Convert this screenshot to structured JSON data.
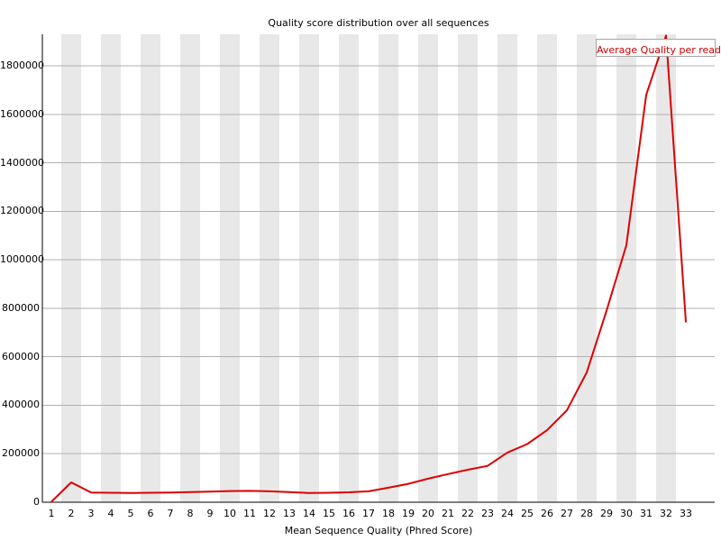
{
  "window": {
    "background": "#ffffff"
  },
  "chart_data": {
    "type": "line",
    "title": "Quality score distribution over all sequences",
    "xlabel": "Mean Sequence Quality (Phred Score)",
    "ylabel": "",
    "x": [
      1,
      2,
      3,
      4,
      5,
      6,
      7,
      8,
      9,
      10,
      11,
      12,
      13,
      14,
      15,
      16,
      17,
      18,
      19,
      20,
      21,
      22,
      23,
      24,
      25,
      26,
      27,
      28,
      29,
      30,
      31,
      32,
      33
    ],
    "series": [
      {
        "name": "Average Quality per read",
        "color": "#dd0000",
        "values": [
          2000,
          82000,
          40000,
          39000,
          38000,
          39000,
          40000,
          42000,
          44000,
          46000,
          47000,
          45000,
          42000,
          38000,
          39000,
          41000,
          45000,
          60000,
          76000,
          97000,
          116000,
          134000,
          150000,
          205000,
          240000,
          297000,
          379000,
          535000,
          790000,
          1060000,
          1680000,
          1925000,
          745000
        ]
      }
    ],
    "ylim": [
      0,
      1930000
    ],
    "yticks": [
      0,
      200000,
      400000,
      600000,
      800000,
      1000000,
      1200000,
      1400000,
      1600000,
      1800000
    ],
    "grid": "horizontal",
    "legend_position": "top-right",
    "background_stripes": "alternating vertical bands on even x categories"
  },
  "colors": {
    "line": "#dd0000",
    "legend_text": "#cc0000",
    "stripe": "#e8e8e8",
    "gridline": "#b0b0b0",
    "axis": "#000000",
    "legend_border": "#a6a6a6"
  }
}
